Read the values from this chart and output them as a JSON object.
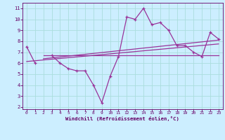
{
  "xlabel": "Windchill (Refroidissement éolien,°C)",
  "background_color": "#cceeff",
  "grid_color": "#aadddd",
  "line_color": "#993399",
  "spine_color": "#660066",
  "x_data": [
    0,
    1,
    2,
    3,
    4,
    5,
    6,
    7,
    8,
    9,
    10,
    11,
    12,
    13,
    14,
    15,
    16,
    17,
    18,
    19,
    20,
    21,
    22,
    23
  ],
  "y_main": [
    7.5,
    6.0,
    null,
    6.7,
    6.0,
    5.5,
    5.3,
    5.3,
    4.0,
    2.4,
    4.8,
    6.6,
    10.2,
    10.0,
    11.0,
    9.5,
    9.7,
    9.0,
    7.6,
    7.6,
    7.0,
    6.6,
    8.8,
    8.2
  ],
  "y_flat": 6.7,
  "flat_x0": 2,
  "flat_x1": 23,
  "trend2_x": [
    0,
    23
  ],
  "trend2_y": [
    6.15,
    7.75
  ],
  "trend3_x": [
    2,
    23
  ],
  "trend3_y": [
    6.4,
    8.1
  ],
  "ylim": [
    1.8,
    11.5
  ],
  "xlim": [
    -0.5,
    23.5
  ],
  "yticks": [
    2,
    3,
    4,
    5,
    6,
    7,
    8,
    9,
    10,
    11
  ],
  "xticks": [
    0,
    1,
    2,
    3,
    4,
    5,
    6,
    7,
    8,
    9,
    10,
    11,
    12,
    13,
    14,
    15,
    16,
    17,
    18,
    19,
    20,
    21,
    22,
    23
  ]
}
